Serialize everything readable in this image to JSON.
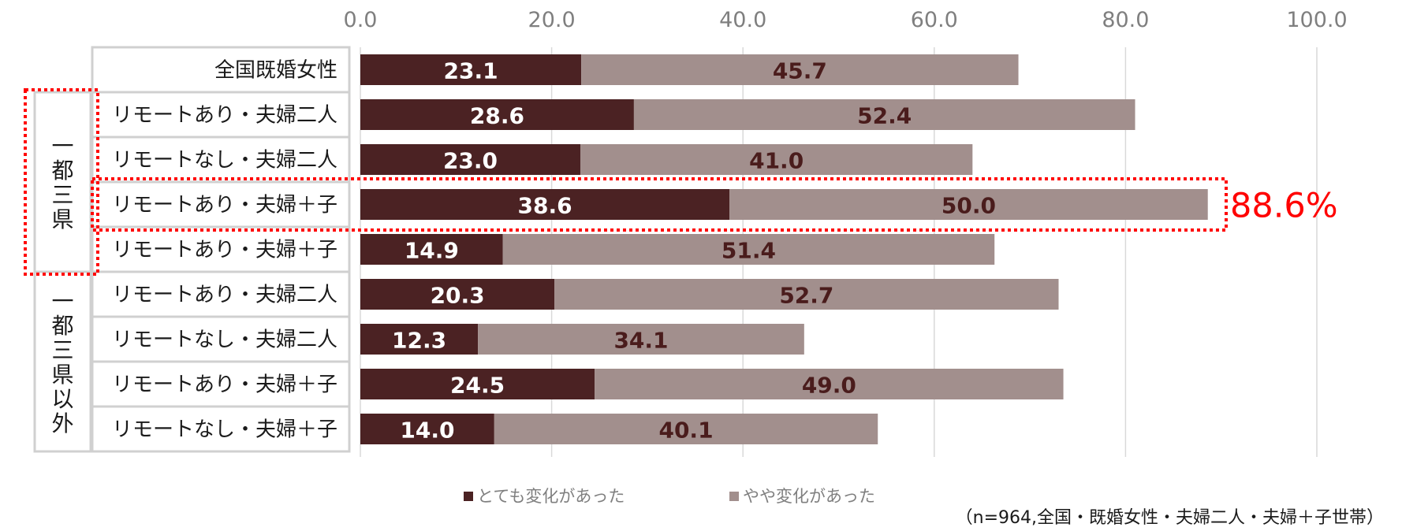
{
  "colors": {
    "series_strong": "#4b2223",
    "series_slight": "#a28f8d",
    "highlight": "#ff0000",
    "grid": "#d9d9d9",
    "table_border": "#d0d0d0"
  },
  "groups": [
    {
      "chars": [
        "一",
        "都",
        "三",
        "県"
      ],
      "rows": [
        1,
        4
      ]
    },
    {
      "chars": [
        "一",
        "都",
        "三",
        "県",
        "以",
        "外"
      ],
      "rows": [
        5,
        8
      ]
    }
  ],
  "highlight": {
    "row": 3,
    "total_label": "88.6%"
  },
  "note": "（n=964,全国・既婚女性・夫婦二人・夫婦＋子世帯）",
  "chart_data": {
    "type": "bar",
    "orientation": "horizontal",
    "stacked": true,
    "categories": [
      "全国既婚女性",
      "リモートあり・夫婦二人",
      "リモートなし・夫婦二人",
      "リモートあり・夫婦＋子",
      "リモートあり・夫婦＋子",
      "リモートあり・夫婦二人",
      "リモートなし・夫婦二人",
      "リモートあり・夫婦＋子",
      "リモートなし・夫婦＋子"
    ],
    "series": [
      {
        "name": "とても変化があった",
        "values": [
          23.1,
          28.6,
          23.0,
          38.6,
          14.9,
          20.3,
          12.3,
          24.5,
          14.0
        ]
      },
      {
        "name": "やや変化があった",
        "values": [
          45.7,
          52.4,
          41.0,
          50.0,
          51.4,
          52.7,
          34.1,
          49.0,
          40.1
        ]
      }
    ],
    "value_labels": [
      [
        "23.1",
        "28.6",
        "23.0",
        "38.6",
        "14.9",
        "20.3",
        "12.3",
        "24.5",
        "14.0"
      ],
      [
        "45.7",
        "52.4",
        "41.0",
        "50.0",
        "51.4",
        "52.7",
        "34.1",
        "49.0",
        "40.1"
      ]
    ],
    "xlim": [
      0,
      100
    ],
    "xticks": [
      "0.0",
      "20.0",
      "40.0",
      "60.0",
      "80.0",
      "100.0"
    ],
    "xtick_values": [
      0,
      20,
      40,
      60,
      80,
      100
    ],
    "grid": true,
    "legend_position": "bottom"
  }
}
